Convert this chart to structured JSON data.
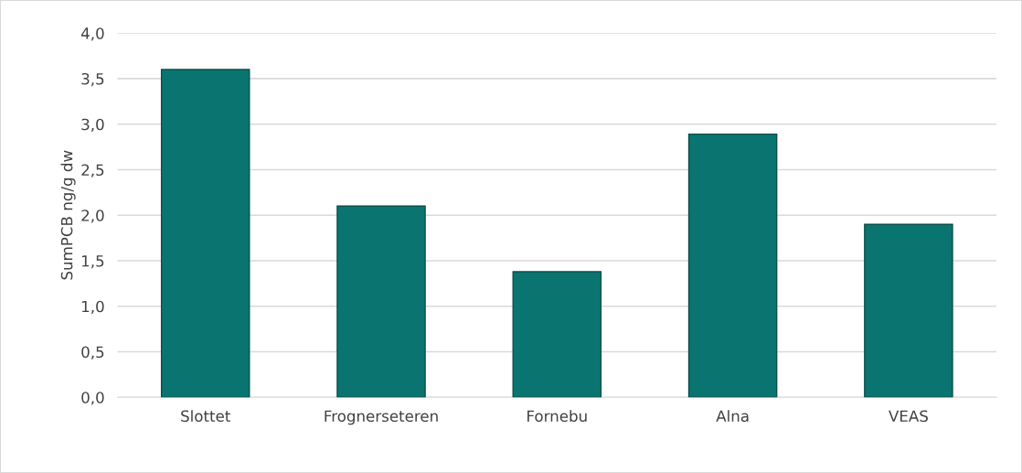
{
  "chart_data": {
    "type": "bar",
    "ylabel": "SumPCB ng/g dw",
    "categories": [
      "Slottet",
      "Frognerseteren",
      "Fornebu",
      "Alna",
      "VEAS"
    ],
    "values": [
      3.6,
      2.1,
      1.38,
      2.89,
      1.9
    ],
    "color": "#0a7570",
    "ylim": [
      0,
      4
    ],
    "yticks": [
      {
        "value": 0,
        "label": "0,0"
      },
      {
        "value": 0.5,
        "label": "0,5"
      },
      {
        "value": 1,
        "label": "1,0"
      },
      {
        "value": 1.5,
        "label": "1,5"
      },
      {
        "value": 2,
        "label": "2,0"
      },
      {
        "value": 2.5,
        "label": "2,5"
      },
      {
        "value": 3,
        "label": "3,0"
      },
      {
        "value": 3.5,
        "label": "3,5"
      },
      {
        "value": 4,
        "label": "4,0"
      }
    ],
    "grid": "y"
  }
}
